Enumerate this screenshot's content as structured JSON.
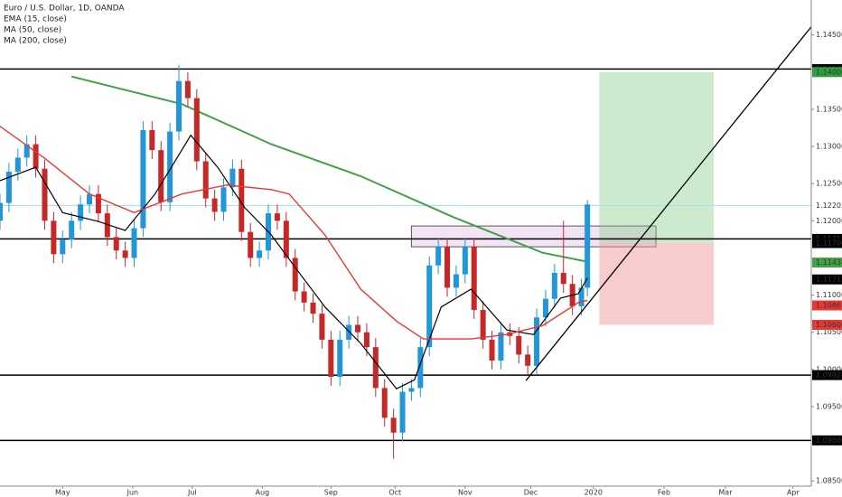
{
  "chart_data": {
    "type": "candlestick",
    "title": "Euro / U.S. Dollar, 1D, OANDA",
    "xlim": [
      0,
      272.1
    ],
    "ylim": [
      1.0843,
      1.1497
    ],
    "xticks": [
      {
        "value": 21,
        "label": "May"
      },
      {
        "value": 44.5,
        "label": "Jun"
      },
      {
        "value": 64.5,
        "label": "Jul"
      },
      {
        "value": 88,
        "label": "Aug"
      },
      {
        "value": 111,
        "label": "Sep"
      },
      {
        "value": 132.5,
        "label": "Oct"
      },
      {
        "value": 156,
        "label": "Nov"
      },
      {
        "value": 178,
        "label": "Dec"
      },
      {
        "value": 199,
        "label": "2020"
      },
      {
        "value": 222.7,
        "label": "Feb"
      },
      {
        "value": 243.3,
        "label": "Mar"
      },
      {
        "value": 266,
        "label": "Apr"
      }
    ],
    "yticks": [
      {
        "value": 1.085,
        "label": "1.08500"
      },
      {
        "value": 1.095,
        "label": "1.09500"
      },
      {
        "value": 1.1,
        "label": "1.10000"
      },
      {
        "value": 1.105,
        "label": "1.10500"
      },
      {
        "value": 1.11,
        "label": "1.11000"
      },
      {
        "value": 1.12,
        "label": "1.12000"
      },
      {
        "value": 1.125,
        "label": "1.12500"
      },
      {
        "value": 1.13,
        "label": "1.13000"
      },
      {
        "value": 1.135,
        "label": "1.13500"
      },
      {
        "value": 1.145,
        "label": "1.14500"
      }
    ],
    "candles": {
      "up_color": "#2196d8",
      "down_color": "#c62828",
      "x": [
        0,
        3,
        6,
        9,
        12,
        15,
        18,
        21,
        24,
        27,
        30,
        33,
        36,
        39,
        42,
        45,
        48,
        51,
        54,
        57,
        60,
        63,
        66,
        69,
        72,
        75,
        78,
        81,
        84,
        87,
        90,
        93,
        96,
        99,
        102,
        105,
        108,
        111,
        114,
        117,
        120,
        123,
        126,
        129,
        132,
        135,
        138,
        141,
        144,
        147,
        150,
        153,
        156,
        159,
        162,
        165,
        168,
        171,
        174,
        177,
        180,
        183,
        186,
        189,
        192,
        195,
        197
      ],
      "open": [
        1.12,
        1.1224,
        1.1266,
        1.1285,
        1.1303,
        1.127,
        1.12,
        1.1155,
        1.1175,
        1.12,
        1.1222,
        1.1236,
        1.121,
        1.1178,
        1.116,
        1.115,
        1.119,
        1.1322,
        1.1295,
        1.1225,
        1.132,
        1.1388,
        1.1365,
        1.128,
        1.123,
        1.1212,
        1.1245,
        1.127,
        1.1185,
        1.115,
        1.116,
        1.121,
        1.12,
        1.115,
        1.1105,
        1.109,
        1.1075,
        1.104,
        1.099,
        1.104,
        1.106,
        1.105,
        1.103,
        1.0975,
        1.0935,
        1.0915,
        1.097,
        1.0975,
        1.103,
        1.114,
        1.1165,
        1.111,
        1.1128,
        1.1165,
        1.108,
        1.104,
        1.1012,
        1.105,
        1.1045,
        1.102,
        1.1005,
        1.107,
        1.1095,
        1.113,
        1.1115,
        1.1085,
        1.111
      ],
      "high": [
        1.1236,
        1.1278,
        1.1297,
        1.1315,
        1.1315,
        1.1282,
        1.1212,
        1.1187,
        1.1212,
        1.1234,
        1.1248,
        1.1248,
        1.1222,
        1.119,
        1.1172,
        1.1202,
        1.1334,
        1.1334,
        1.1307,
        1.1332,
        1.141,
        1.14,
        1.1377,
        1.1292,
        1.1242,
        1.1257,
        1.1282,
        1.1282,
        1.1197,
        1.1172,
        1.1222,
        1.1222,
        1.1212,
        1.1162,
        1.1117,
        1.1102,
        1.1087,
        1.1052,
        1.1052,
        1.1072,
        1.1072,
        1.1062,
        1.1042,
        1.0987,
        1.0947,
        1.0982,
        1.0987,
        1.1042,
        1.1152,
        1.1177,
        1.1177,
        1.114,
        1.1177,
        1.1177,
        1.1092,
        1.1052,
        1.1062,
        1.1062,
        1.1057,
        1.1032,
        1.1082,
        1.1107,
        1.1142,
        1.12,
        1.1127,
        1.1122,
        1.1228
      ],
      "low": [
        1.1188,
        1.1212,
        1.1254,
        1.1273,
        1.1258,
        1.1188,
        1.1143,
        1.1143,
        1.1163,
        1.1188,
        1.121,
        1.1198,
        1.1166,
        1.1148,
        1.1138,
        1.1138,
        1.1178,
        1.1283,
        1.1213,
        1.1213,
        1.1308,
        1.1353,
        1.1268,
        1.1218,
        1.12,
        1.12,
        1.1233,
        1.1173,
        1.1138,
        1.1138,
        1.1148,
        1.1188,
        1.1138,
        1.1093,
        1.1078,
        1.1063,
        1.1028,
        1.0978,
        1.0978,
        1.1028,
        1.1038,
        1.1018,
        1.0963,
        1.0923,
        1.088,
        1.0903,
        1.0958,
        1.0963,
        1.1018,
        1.1128,
        1.1098,
        1.1098,
        1.1116,
        1.1068,
        1.1028,
        1.1,
        1.1,
        1.1033,
        1.1008,
        1.0993,
        1.0993,
        1.1058,
        1.1083,
        1.1103,
        1.1073,
        1.1073,
        1.1098
      ],
      "close": [
        1.1224,
        1.1266,
        1.1285,
        1.1303,
        1.127,
        1.12,
        1.1155,
        1.1175,
        1.12,
        1.1222,
        1.1236,
        1.121,
        1.1178,
        1.116,
        1.115,
        1.119,
        1.1322,
        1.1295,
        1.1225,
        1.132,
        1.1388,
        1.1365,
        1.128,
        1.123,
        1.1212,
        1.1245,
        1.127,
        1.1185,
        1.115,
        1.116,
        1.121,
        1.12,
        1.115,
        1.1105,
        1.109,
        1.1075,
        1.104,
        1.099,
        1.104,
        1.106,
        1.105,
        1.103,
        1.0975,
        1.0935,
        1.0915,
        1.097,
        1.0975,
        1.103,
        1.114,
        1.1165,
        1.111,
        1.1128,
        1.1165,
        1.108,
        1.104,
        1.1012,
        1.105,
        1.1045,
        1.102,
        1.1005,
        1.107,
        1.1095,
        1.113,
        1.1115,
        1.1085,
        1.111,
        1.1222
      ]
    },
    "series": [
      {
        "name": "EMA (15, close)",
        "color": "#000000",
        "x": [
          0,
          12,
          21,
          33,
          42,
          52,
          64,
          73,
          82,
          91,
          100,
          109,
          121,
          133,
          139,
          148,
          158,
          170,
          179,
          188,
          194,
          197
        ],
        "values": [
          1.1254,
          1.1272,
          1.1211,
          1.1199,
          1.1187,
          1.1236,
          1.1315,
          1.1272,
          1.1218,
          1.1181,
          1.1132,
          1.1084,
          1.1035,
          1.0974,
          1.0986,
          1.1084,
          1.1108,
          1.1053,
          1.1047,
          1.1096,
          1.1102,
          1.1123
        ]
      },
      {
        "name": "MA (50, close)",
        "color": "#e53935",
        "x": [
          0,
          15,
          30,
          45,
          61,
          76,
          91,
          97,
          109,
          121,
          133,
          142,
          158,
          170,
          182,
          194,
          197
        ],
        "values": [
          1.1327,
          1.1284,
          1.1236,
          1.1211,
          1.1236,
          1.1248,
          1.1242,
          1.1236,
          1.1181,
          1.1108,
          1.1065,
          1.1041,
          1.1041,
          1.1047,
          1.1059,
          1.109,
          1.1093
        ]
      },
      {
        "name": "MA (200, close)",
        "color": "#43a047",
        "x": [
          24,
          61,
          91,
          121,
          152,
          182,
          197
        ],
        "values": [
          1.1394,
          1.1357,
          1.1303,
          1.126,
          1.1205,
          1.1157,
          1.1145
        ]
      }
    ],
    "price_labels": [
      {
        "value": 1.14041,
        "label": "1.14041",
        "color": "#000000",
        "line_color": "#000000"
      },
      {
        "value": 1.14,
        "label": "1.14000",
        "color": "#2e9e3e"
      },
      {
        "value": 1.12205,
        "label": "1.12205",
        "color": "#ffffff",
        "line_color": "#9ee6ef"
      },
      {
        "value": 1.11756,
        "label": "1.11756",
        "color": "#000000",
        "line_color": "#000000"
      },
      {
        "value": 1.117,
        "label": "1.11700",
        "color": "#000000"
      },
      {
        "value": 1.11438,
        "label": "1.11438",
        "color": "#43a047"
      },
      {
        "value": 1.11211,
        "label": "1.11211",
        "color": "#000000"
      },
      {
        "value": 1.10861,
        "label": "1.10861",
        "color": "#e53935"
      },
      {
        "value": 1.106,
        "label": "1.10600",
        "color": "#e53935"
      },
      {
        "value": 1.09924,
        "label": "1.09924",
        "color": "#000000",
        "line_color": "#000000"
      },
      {
        "value": 1.09046,
        "label": "1.09046",
        "color": "#000000",
        "line_color": "#000000"
      }
    ],
    "zones": [
      {
        "x": [
          138,
          220
        ],
        "top": 1.1193,
        "bottom": 1.1165,
        "color": "rgba(206,147,216,0.25)",
        "border": "#555555"
      },
      {
        "x": [
          201,
          239.4
        ],
        "top": 1.14,
        "bottom": 1.117,
        "color": "rgba(129,199,132,0.4)"
      },
      {
        "x": [
          201,
          239.4
        ],
        "top": 1.117,
        "bottom": 1.106,
        "color": "rgba(239,154,154,0.5)"
      }
    ],
    "trendline": {
      "x": [
        176.4,
        272.1
      ],
      "values": [
        1.0985,
        1.1461
      ],
      "color": "#000000"
    }
  }
}
